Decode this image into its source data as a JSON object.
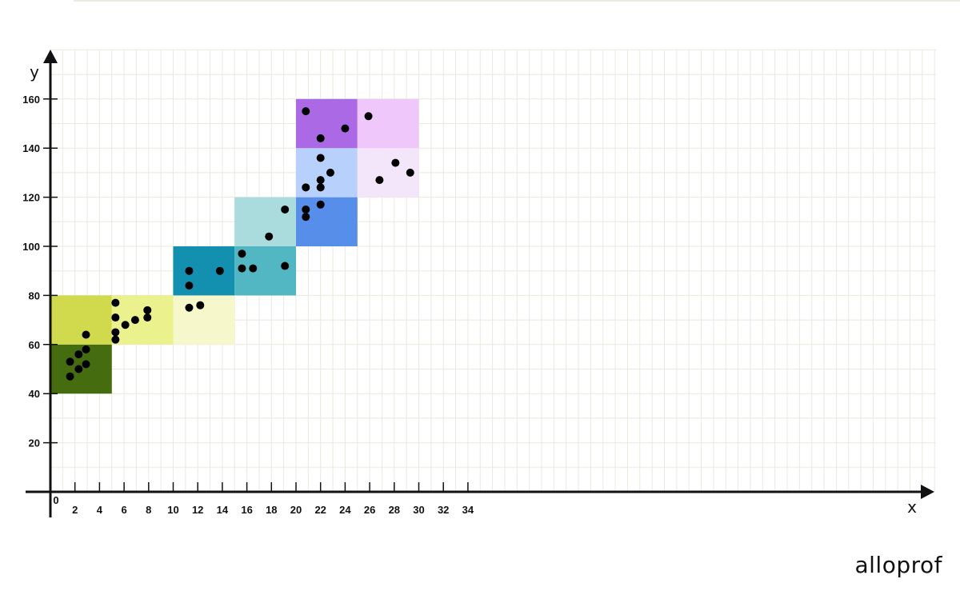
{
  "brand": "alloprof",
  "chart_data": {
    "type": "scatter",
    "title": "",
    "xlabel": "x",
    "ylabel": "y",
    "xlim": [
      0,
      35
    ],
    "ylim": [
      0,
      160
    ],
    "x_ticks": [
      2,
      4,
      6,
      8,
      10,
      12,
      14,
      16,
      18,
      20,
      22,
      24,
      26,
      28,
      30,
      32,
      34
    ],
    "y_ticks": [
      20,
      40,
      60,
      80,
      100,
      120,
      140,
      160
    ],
    "origin_label": "0",
    "grid": true,
    "cells": [
      {
        "x0": 0,
        "x1": 5,
        "y0": 40,
        "y1": 60,
        "color": "#456d10"
      },
      {
        "x0": 0,
        "x1": 5,
        "y0": 60,
        "y1": 80,
        "color": "#d1da4d"
      },
      {
        "x0": 5,
        "x1": 10,
        "y0": 60,
        "y1": 80,
        "color": "#ebf18c"
      },
      {
        "x0": 10,
        "x1": 15,
        "y0": 60,
        "y1": 80,
        "color": "#f7f7cc"
      },
      {
        "x0": 10,
        "x1": 15,
        "y0": 80,
        "y1": 100,
        "color": "#138fb0"
      },
      {
        "x0": 15,
        "x1": 20,
        "y0": 80,
        "y1": 100,
        "color": "#52b6c3"
      },
      {
        "x0": 15,
        "x1": 20,
        "y0": 100,
        "y1": 120,
        "color": "#aadcde"
      },
      {
        "x0": 20,
        "x1": 25,
        "y0": 100,
        "y1": 120,
        "color": "#568eea"
      },
      {
        "x0": 20,
        "x1": 25,
        "y0": 120,
        "y1": 140,
        "color": "#b8d1fc"
      },
      {
        "x0": 20,
        "x1": 25,
        "y0": 140,
        "y1": 160,
        "color": "#ab69e6"
      },
      {
        "x0": 25,
        "x1": 30,
        "y0": 120,
        "y1": 140,
        "color": "#f3e6fb"
      },
      {
        "x0": 25,
        "x1": 30,
        "y0": 140,
        "y1": 160,
        "color": "#f0c7fb"
      }
    ],
    "points": [
      {
        "x": 1.6,
        "y": 53
      },
      {
        "x": 1.6,
        "y": 47
      },
      {
        "x": 2.3,
        "y": 56
      },
      {
        "x": 2.3,
        "y": 50
      },
      {
        "x": 2.9,
        "y": 64
      },
      {
        "x": 2.9,
        "y": 58
      },
      {
        "x": 2.9,
        "y": 52
      },
      {
        "x": 5.3,
        "y": 77
      },
      {
        "x": 5.3,
        "y": 71
      },
      {
        "x": 5.3,
        "y": 65
      },
      {
        "x": 5.3,
        "y": 62
      },
      {
        "x": 6.1,
        "y": 68
      },
      {
        "x": 6.9,
        "y": 70
      },
      {
        "x": 7.9,
        "y": 74
      },
      {
        "x": 7.9,
        "y": 71
      },
      {
        "x": 11.3,
        "y": 90
      },
      {
        "x": 11.3,
        "y": 84
      },
      {
        "x": 11.3,
        "y": 75
      },
      {
        "x": 12.2,
        "y": 76
      },
      {
        "x": 13.8,
        "y": 90
      },
      {
        "x": 15.6,
        "y": 97
      },
      {
        "x": 15.6,
        "y": 91
      },
      {
        "x": 16.5,
        "y": 91
      },
      {
        "x": 17.8,
        "y": 104
      },
      {
        "x": 19.1,
        "y": 115
      },
      {
        "x": 19.1,
        "y": 92
      },
      {
        "x": 20.8,
        "y": 155
      },
      {
        "x": 20.8,
        "y": 124
      },
      {
        "x": 20.8,
        "y": 115
      },
      {
        "x": 20.8,
        "y": 112
      },
      {
        "x": 22.0,
        "y": 144
      },
      {
        "x": 22.0,
        "y": 136
      },
      {
        "x": 22.0,
        "y": 127
      },
      {
        "x": 22.0,
        "y": 124
      },
      {
        "x": 22.0,
        "y": 117
      },
      {
        "x": 22.8,
        "y": 130
      },
      {
        "x": 24.0,
        "y": 148
      },
      {
        "x": 25.9,
        "y": 153
      },
      {
        "x": 26.8,
        "y": 127
      },
      {
        "x": 28.1,
        "y": 134
      },
      {
        "x": 29.3,
        "y": 130
      }
    ]
  }
}
